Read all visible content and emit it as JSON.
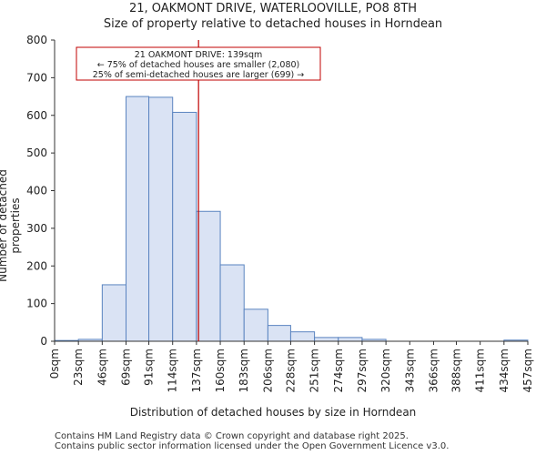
{
  "header": {
    "title_line1": "21, OAKMONT DRIVE, WATERLOOVILLE, PO8 8TH",
    "title_line2": "Size of property relative to detached houses in Horndean"
  },
  "footer": {
    "line1": "Contains HM Land Registry data © Crown copyright and database right 2025.",
    "line2": "Contains public sector information licensed under the Open Government Licence v3.0."
  },
  "colors": {
    "bar_fill": "#dae3f4",
    "bar_stroke": "#5a84c0",
    "marker": "#c00000",
    "annotation_border": "#c00000",
    "axis": "#333333"
  },
  "chart_data": {
    "type": "bar",
    "title": "Size of property relative to detached houses in Horndean",
    "xlabel": "Distribution of detached houses by size in Horndean",
    "ylabel": "Number of detached properties",
    "ylim": [
      0,
      800
    ],
    "yticks": [
      0,
      100,
      200,
      300,
      400,
      500,
      600,
      700,
      800
    ],
    "bin_edges": [
      0,
      23,
      46,
      69,
      91,
      114,
      137,
      160,
      183,
      206,
      228,
      251,
      274,
      297,
      320,
      343,
      366,
      388,
      411,
      434,
      457
    ],
    "tick_labels": [
      "0sqm",
      "23sqm",
      "46sqm",
      "69sqm",
      "91sqm",
      "114sqm",
      "137sqm",
      "160sqm",
      "183sqm",
      "206sqm",
      "228sqm",
      "251sqm",
      "274sqm",
      "297sqm",
      "320sqm",
      "343sqm",
      "366sqm",
      "388sqm",
      "411sqm",
      "434sqm",
      "457sqm"
    ],
    "values": [
      2,
      5,
      150,
      650,
      648,
      608,
      345,
      203,
      85,
      42,
      25,
      10,
      10,
      5,
      0,
      0,
      0,
      0,
      0,
      3
    ],
    "marker_value": 139,
    "annotation": {
      "line1": "21 OAKMONT DRIVE: 139sqm",
      "line2": "← 75% of detached houses are smaller (2,080)",
      "line3": "25% of semi-detached houses are larger (699) →"
    }
  }
}
